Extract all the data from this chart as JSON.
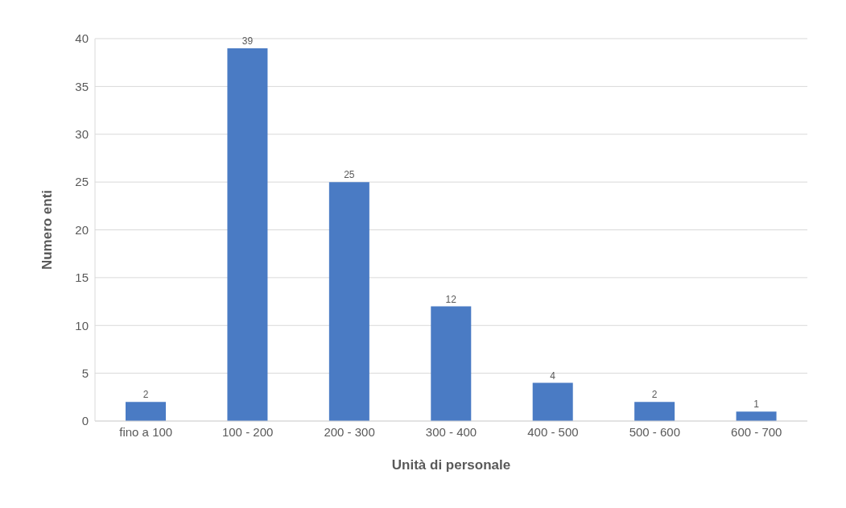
{
  "chart_data": {
    "type": "bar",
    "xlabel": "Unità di personale",
    "ylabel": "Numero enti",
    "categories": [
      "fino a 100",
      "100 - 200",
      "200 - 300",
      "300 - 400",
      "400 - 500",
      "500 - 600",
      "600 - 700"
    ],
    "values": [
      2,
      39,
      25,
      12,
      4,
      2,
      1
    ],
    "color": "#4a7bc4",
    "ylim": [
      0,
      40
    ],
    "yticks": [
      0,
      5,
      10,
      15,
      20,
      25,
      30,
      35,
      40
    ],
    "grid": "y",
    "data_labels": true
  }
}
